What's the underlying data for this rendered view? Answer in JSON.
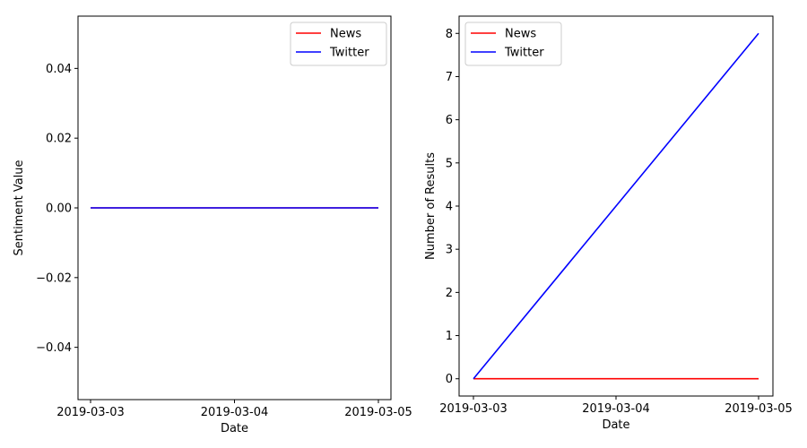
{
  "chart_data": [
    {
      "type": "line",
      "xlabel": "Date",
      "ylabel": "Sentiment Value",
      "x": [
        "2019-03-03",
        "2019-03-04",
        "2019-03-05"
      ],
      "xticks": [
        "2019-03-03",
        "2019-03-04",
        "2019-03-05"
      ],
      "ylim": [
        -0.055,
        0.055
      ],
      "yticks": [
        -0.04,
        -0.02,
        0.0,
        0.02,
        0.04
      ],
      "ytick_labels": [
        "−0.04",
        "−0.02",
        "0.00",
        "0.02",
        "0.04"
      ],
      "series": [
        {
          "name": "News",
          "color": "#ff0000",
          "values": [
            0,
            0,
            0
          ]
        },
        {
          "name": "Twitter",
          "color": "#0000ff",
          "values": [
            0,
            0,
            0
          ]
        }
      ],
      "legend": "top-right",
      "grid": false
    },
    {
      "type": "line",
      "xlabel": "Date",
      "ylabel": "Number of Results",
      "x": [
        "2019-03-03",
        "2019-03-04",
        "2019-03-05"
      ],
      "xticks": [
        "2019-03-03",
        "2019-03-04",
        "2019-03-05"
      ],
      "ylim": [
        -0.4,
        8.4
      ],
      "yticks": [
        0,
        1,
        2,
        3,
        4,
        5,
        6,
        7,
        8
      ],
      "ytick_labels": [
        "0",
        "1",
        "2",
        "3",
        "4",
        "5",
        "6",
        "7",
        "8"
      ],
      "series": [
        {
          "name": "News",
          "color": "#ff0000",
          "values": [
            0,
            0,
            0
          ]
        },
        {
          "name": "Twitter",
          "color": "#0000ff",
          "values": [
            0,
            4,
            8
          ]
        }
      ],
      "legend": "top-left",
      "grid": false
    }
  ]
}
